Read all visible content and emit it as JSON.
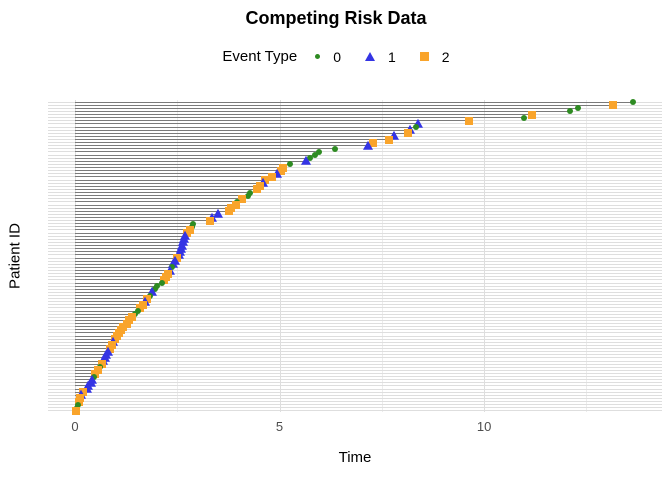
{
  "title": "Competing Risk Data",
  "legend": {
    "title": "Event Type"
  },
  "colors": {
    "event0": "#2E8B22",
    "event1": "#3434E4",
    "event2": "#F9A42B",
    "segment": "#7a7a7a",
    "grid_major": "#dedede",
    "grid_minor": "#ececec",
    "tick_label": "#4d4d4d",
    "text": "#000000"
  },
  "chart_data": {
    "type": "scatter",
    "title": "Competing Risk Data",
    "xlabel": "Time",
    "ylabel": "Patient ID",
    "legend_title": "Event Type",
    "legend_position": "top",
    "x_range": [
      -0.66,
      14.35
    ],
    "x_ticks": [
      {
        "value": 0,
        "label": "0"
      },
      {
        "value": 5,
        "label": "5"
      },
      {
        "value": 10,
        "label": "10"
      }
    ],
    "x_minor_gridlines": [
      2.5,
      7.5,
      12.5
    ],
    "y_tick_labels_shown": false,
    "n_patients": 100,
    "event_types": [
      {
        "label": "0",
        "shape": "circle",
        "color": "#2E8B22"
      },
      {
        "label": "1",
        "shape": "triangle",
        "color": "#3434E4"
      },
      {
        "label": "2",
        "shape": "square",
        "color": "#F9A42B"
      }
    ],
    "patients": {
      "order": "top-to-bottom (sorted by decreasing event time)",
      "times": [
        13.65,
        13.15,
        12.3,
        12.1,
        11.17,
        10.98,
        9.63,
        8.39,
        8.34,
        8.19,
        8.14,
        7.8,
        7.68,
        7.29,
        7.16,
        6.36,
        5.97,
        5.87,
        5.75,
        5.65,
        5.26,
        5.09,
        5.03,
        4.94,
        4.81,
        4.64,
        4.6,
        4.52,
        4.45,
        4.28,
        4.23,
        4.08,
        3.96,
        3.94,
        3.81,
        3.77,
        3.5,
        3.35,
        3.3,
        2.89,
        2.86,
        2.81,
        2.74,
        2.69,
        2.66,
        2.64,
        2.62,
        2.6,
        2.57,
        2.53,
        2.49,
        2.44,
        2.4,
        2.37,
        2.32,
        2.27,
        2.23,
        2.18,
        2.12,
        2.0,
        1.95,
        1.88,
        1.83,
        1.76,
        1.71,
        1.66,
        1.59,
        1.54,
        1.47,
        1.39,
        1.33,
        1.27,
        1.17,
        1.12,
        1.08,
        1.03,
        0.98,
        0.93,
        0.9,
        0.86,
        0.81,
        0.76,
        0.73,
        0.68,
        0.66,
        0.61,
        0.56,
        0.49,
        0.46,
        0.42,
        0.38,
        0.32,
        0.28,
        0.2,
        0.15,
        0.12,
        0.1,
        0.07,
        0.05,
        0.02
      ],
      "events": [
        0,
        2,
        0,
        0,
        2,
        0,
        2,
        1,
        0,
        1,
        2,
        1,
        2,
        2,
        1,
        0,
        0,
        0,
        0,
        1,
        0,
        2,
        2,
        1,
        2,
        2,
        1,
        2,
        2,
        0,
        0,
        2,
        0,
        2,
        2,
        2,
        1,
        1,
        2,
        0,
        0,
        2,
        2,
        1,
        1,
        1,
        1,
        1,
        1,
        1,
        2,
        1,
        1,
        0,
        1,
        2,
        2,
        2,
        0,
        0,
        0,
        1,
        0,
        2,
        1,
        2,
        2,
        0,
        0,
        2,
        2,
        2,
        2,
        2,
        2,
        2,
        2,
        1,
        2,
        2,
        1,
        1,
        1,
        1,
        2,
        0,
        2,
        2,
        0,
        1,
        1,
        1,
        1,
        2,
        1,
        2,
        2,
        0,
        0,
        2
      ]
    }
  }
}
